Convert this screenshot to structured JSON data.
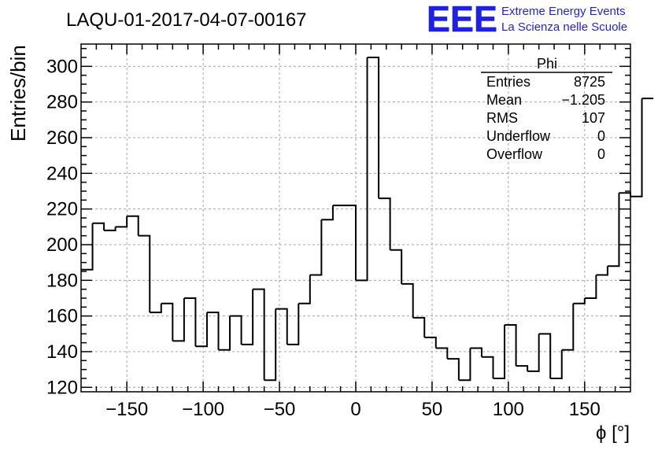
{
  "chart_data": {
    "type": "bar",
    "title": "LAQU-01-2017-04-07-00167",
    "xlabel": "ϕ [°]",
    "ylabel": "Entries/bin",
    "xlim": [
      -180,
      180
    ],
    "ylim": [
      117.5,
      312.5
    ],
    "bin_width": 7.5,
    "x_ticks": [
      -150,
      -100,
      -50,
      0,
      50,
      100,
      150
    ],
    "x_tick_labels": [
      "−150",
      "−100",
      "−50",
      "0",
      "50",
      "100",
      "150"
    ],
    "y_ticks": [
      120,
      140,
      160,
      180,
      200,
      220,
      240,
      260,
      280,
      300
    ],
    "y_tick_labels": [
      "120",
      "140",
      "160",
      "180",
      "200",
      "220",
      "240",
      "260",
      "280",
      "300"
    ],
    "grid": true,
    "values": [
      186,
      212,
      208,
      210,
      216,
      205,
      162,
      167,
      146,
      170,
      143,
      162,
      141,
      160,
      144,
      175,
      124,
      164,
      144,
      167,
      183,
      214,
      222,
      222,
      180,
      305,
      226,
      197,
      178,
      159,
      148,
      142,
      136,
      124,
      142,
      137,
      125,
      155,
      132,
      129,
      150,
      125,
      141,
      167,
      170,
      183,
      188,
      229,
      227,
      282
    ]
  },
  "stats_box": {
    "title": "Phi",
    "rows": [
      {
        "label": "Entries",
        "value": "8725"
      },
      {
        "label": "Mean",
        "value": "−1.205"
      },
      {
        "label": "RMS",
        "value": "107"
      },
      {
        "label": "Underflow",
        "value": "0"
      },
      {
        "label": "Overflow",
        "value": "0"
      }
    ]
  },
  "logo": {
    "mark": "EEE",
    "line1": "Extreme Energy Events",
    "line2": "La Scienza nelle Scuole",
    "color": "#1f1fe6"
  }
}
